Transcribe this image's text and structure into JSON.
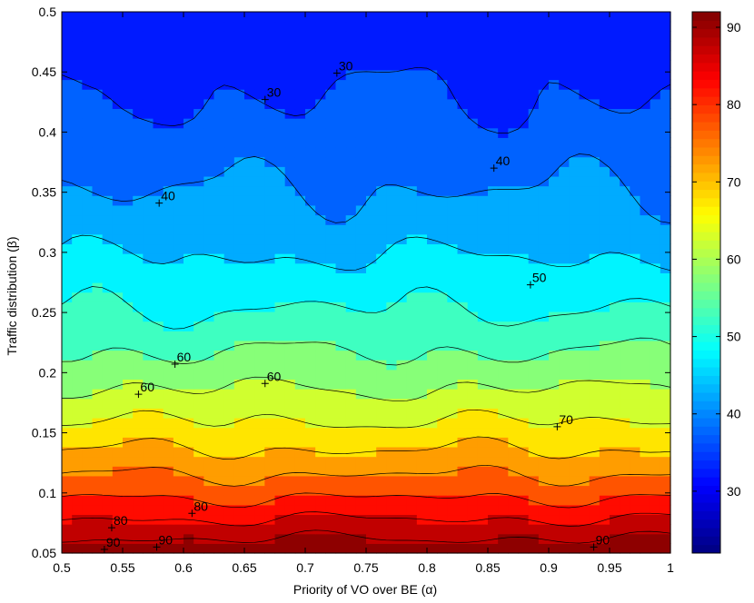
{
  "chart_data": {
    "type": "contour",
    "title": "",
    "xlabel": "Priority of VO over BE (α)",
    "ylabel": "Traffic distribution (β)",
    "xlim": [
      0.5,
      1.0
    ],
    "ylim": [
      0.05,
      0.5
    ],
    "x_ticks": [
      "0.5",
      "0.55",
      "0.6",
      "0.65",
      "0.7",
      "0.75",
      "0.8",
      "0.85",
      "0.9",
      "0.95",
      "1"
    ],
    "y_ticks": [
      "0.05",
      "0.1",
      "0.15",
      "0.2",
      "0.25",
      "0.3",
      "0.35",
      "0.4",
      "0.45",
      "0.5"
    ],
    "levels": [
      25,
      30,
      35,
      40,
      45,
      50,
      55,
      60,
      65,
      70,
      75,
      80,
      85,
      90
    ],
    "contour_labels": [
      {
        "text": "30",
        "x": 0.726,
        "y": 0.449
      },
      {
        "text": "30",
        "x": 0.667,
        "y": 0.427
      },
      {
        "text": "40",
        "x": 0.855,
        "y": 0.37
      },
      {
        "text": "40",
        "x": 0.58,
        "y": 0.341
      },
      {
        "text": "50",
        "x": 0.885,
        "y": 0.273
      },
      {
        "text": "60",
        "x": 0.593,
        "y": 0.207
      },
      {
        "text": "60",
        "x": 0.563,
        "y": 0.182
      },
      {
        "text": "60",
        "x": 0.667,
        "y": 0.191
      },
      {
        "text": "70",
        "x": 0.907,
        "y": 0.155
      },
      {
        "text": "80",
        "x": 0.541,
        "y": 0.071
      },
      {
        "text": "80",
        "x": 0.607,
        "y": 0.083
      },
      {
        "text": "90",
        "x": 0.535,
        "y": 0.053
      },
      {
        "text": "90",
        "x": 0.578,
        "y": 0.055
      },
      {
        "text": "90",
        "x": 0.937,
        "y": 0.055
      }
    ],
    "colorbar": {
      "range": [
        22,
        92
      ],
      "ticks": [
        "30",
        "40",
        "50",
        "60",
        "70",
        "80",
        "90"
      ],
      "colormap": "jet"
    },
    "grid": false,
    "legend": "none"
  }
}
